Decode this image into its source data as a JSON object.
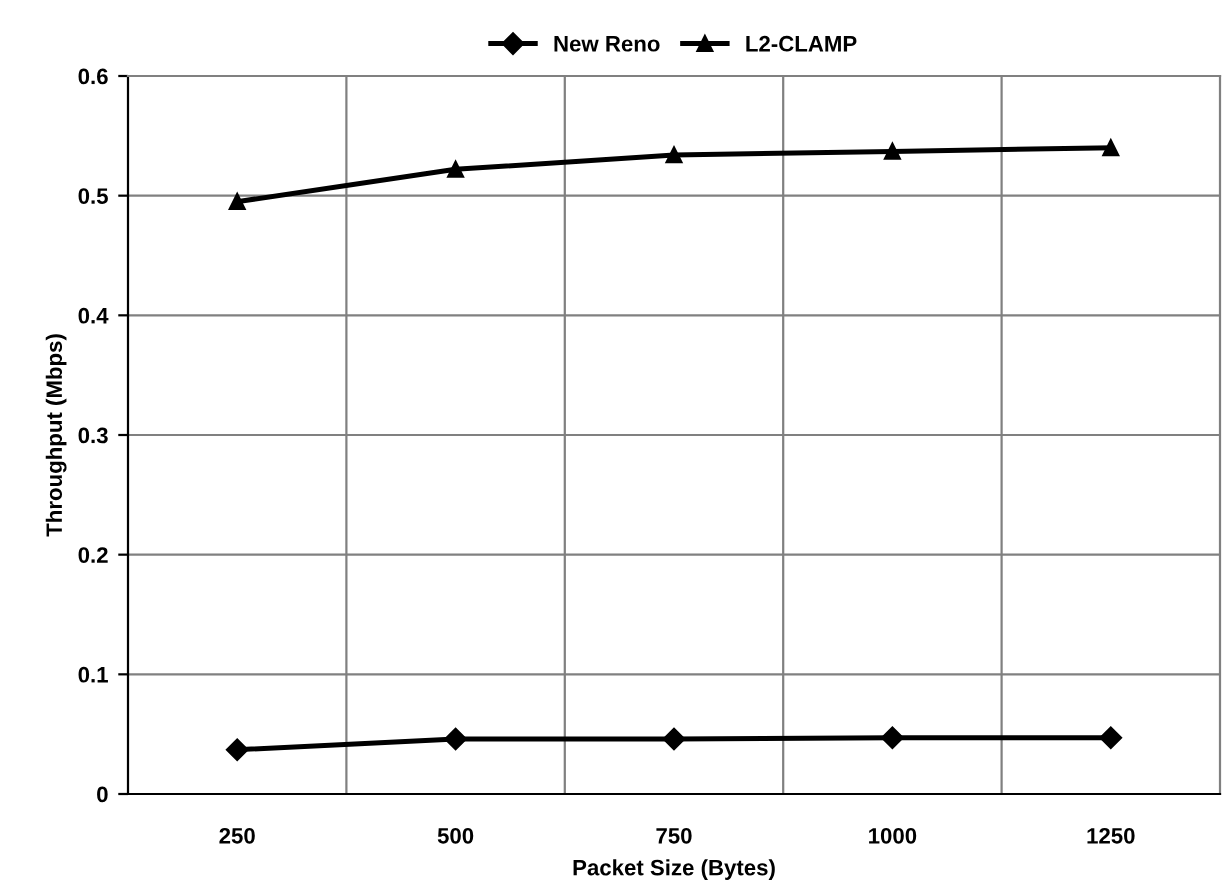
{
  "chart_data": {
    "type": "line",
    "xlabel": "Packet Size (Bytes)",
    "ylabel": "Throughput (Mbps)",
    "categories": [
      "250",
      "500",
      "750",
      "1000",
      "1250"
    ],
    "series": [
      {
        "name": "New Reno",
        "color": "#000000",
        "marker": "diamond",
        "values": [
          0.037,
          0.046,
          0.046,
          0.047,
          0.047
        ]
      },
      {
        "name": "L2-CLAMP",
        "color": "#000000",
        "marker": "triangle",
        "values": [
          0.495,
          0.522,
          0.534,
          0.537,
          0.54
        ]
      }
    ],
    "ylim": [
      0,
      0.6
    ],
    "yticks": [
      0,
      0.1,
      0.2,
      0.3,
      0.4,
      0.5,
      0.6
    ],
    "grid": true,
    "legend": "top"
  }
}
